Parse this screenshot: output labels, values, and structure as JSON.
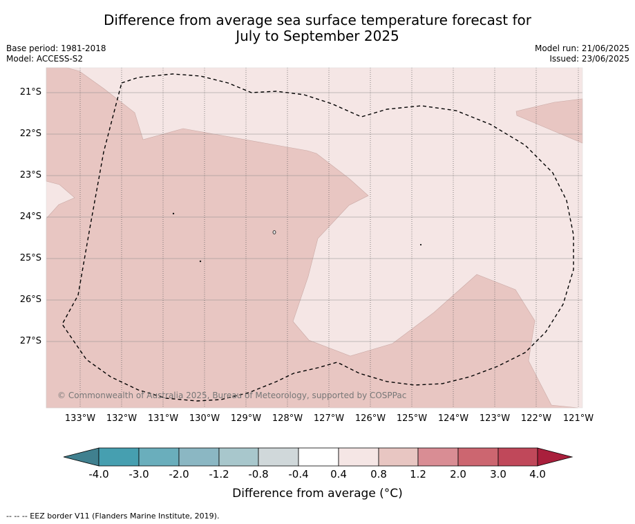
{
  "title_line1": "Difference from average sea surface temperature forecast for",
  "title_line2": "July to September 2025",
  "base_period": "Base period: 1981-2018",
  "model": "Model: ACCESS-S2",
  "model_run": "Model run: 21/06/2025",
  "issued": "Issued: 23/06/2025",
  "lat_labels": [
    "21°S",
    "22°S",
    "23°S",
    "24°S",
    "25°S",
    "26°S",
    "27°S"
  ],
  "lon_labels": [
    "133°W",
    "132°W",
    "131°W",
    "130°W",
    "129°W",
    "128°W",
    "127°W",
    "126°W",
    "125°W",
    "124°W",
    "123°W",
    "122°W",
    "121°W"
  ],
  "copyright": "© Commonwealth of Australia 2025, Bureau of Meteorology, supported by COSPPac",
  "colorbar": {
    "ticks": [
      "-4.0",
      "-3.0",
      "-2.0",
      "-1.2",
      "-0.8",
      "-0.4",
      "0.4",
      "0.8",
      "1.2",
      "2.0",
      "3.0",
      "4.0"
    ],
    "colors": [
      "#40808f",
      "#469fb0",
      "#6aaebc",
      "#8bb7c3",
      "#a8c7cc",
      "#d0d8da",
      "#ffffff",
      "#f5e6e5",
      "#e8c6c2",
      "#d98d94",
      "#cc6670",
      "#c0485a",
      "#a91f3c"
    ],
    "title": "Difference from average (°C)"
  },
  "footnote": "--  --  -- EEZ border V11 (Flanders Marine Institute, 2019).",
  "map_colors": {
    "light": "#f5e6e5",
    "medium": "#e8c6c2"
  }
}
